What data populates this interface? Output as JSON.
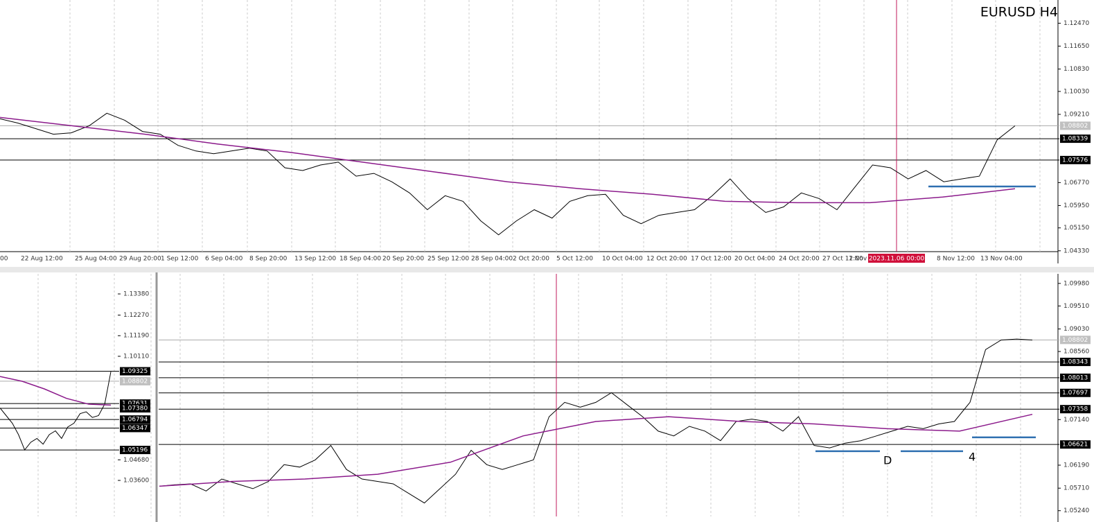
{
  "chart_data": [
    {
      "type": "line",
      "title": "EURUSD H4",
      "ylim": [
        1.043,
        1.133
      ],
      "yticks": [
        {
          "value": 1.1247,
          "label": "1.12470"
        },
        {
          "value": 1.1165,
          "label": "1.11650"
        },
        {
          "value": 1.1083,
          "label": "1.10830"
        },
        {
          "value": 1.1003,
          "label": "1.10030"
        },
        {
          "value": 1.0921,
          "label": "1.09210"
        },
        {
          "value": 1.0677,
          "label": "1.06770"
        },
        {
          "value": 1.0595,
          "label": "1.05950"
        },
        {
          "value": 1.0515,
          "label": "1.05150"
        },
        {
          "value": 1.0433,
          "label": "1.04330"
        }
      ],
      "current": {
        "value": 1.08802,
        "label": "1.08802"
      },
      "levels": [
        {
          "value": 1.08339,
          "label": "1.08339"
        },
        {
          "value": 1.07576,
          "label": "1.07576"
        }
      ],
      "supports": [
        1.0663
      ],
      "time_labels": [
        "00",
        "22 Aug 12:00",
        "25 Aug 04:00",
        "29 Aug 20:00",
        "1 Sep 12:00",
        "6 Sep 04:00",
        "8 Sep 20:00",
        "13 Sep 12:00",
        "18 Sep 04:00",
        "20 Sep 20:00",
        "25 Sep 12:00",
        "28 Sep 04:00",
        "2 Oct 20:00",
        "5 Oct 12:00",
        "10 Oct 04:00",
        "12 Oct 20:00",
        "17 Oct 12:00",
        "20 Oct 04:00",
        "24 Oct 20:00",
        "27 Oct 12:00",
        "1 Nov",
        "8 Nov 12:00",
        "13 Nov 04:00"
      ],
      "cursor_label": "2023.11.06 00:00",
      "series": [
        {
          "color": "#000000",
          "values": [
            1.0905,
            1.089,
            1.087,
            1.085,
            1.0855,
            1.088,
            1.0925,
            1.09,
            1.086,
            1.085,
            1.081,
            1.079,
            1.078,
            1.079,
            1.08,
            1.079,
            1.073,
            1.072,
            1.074,
            1.075,
            1.07,
            1.071,
            1.068,
            1.064,
            1.058,
            1.063,
            1.061,
            1.054,
            1.049,
            1.054,
            1.058,
            1.055,
            1.061,
            1.063,
            1.0635,
            1.056,
            1.053,
            1.056,
            1.057,
            1.058,
            1.063,
            1.069,
            1.062,
            1.057,
            1.059,
            1.064,
            1.062,
            1.058,
            1.066,
            1.074,
            1.073,
            1.069,
            1.072,
            1.068,
            1.069,
            1.07,
            1.083,
            1.088
          ]
        },
        {
          "color": "#8b1a8b",
          "values": [
            1.091,
            1.088,
            1.085,
            1.0815,
            1.0785,
            1.075,
            1.0715,
            1.068,
            1.0655,
            1.0635,
            1.061,
            1.0605,
            1.0605,
            1.0625,
            1.0655
          ]
        }
      ]
    },
    {
      "type": "line",
      "ylim": [
        1.01709,
        1.14435
      ],
      "yticks": [
        {
          "value": 1.1338,
          "label": "1.13380"
        },
        {
          "value": 1.1227,
          "label": "1.12270"
        },
        {
          "value": 1.1119,
          "label": "1.11190"
        },
        {
          "value": 1.1011,
          "label": "1.10110"
        },
        {
          "value": 1.0468,
          "label": "1.04680"
        },
        {
          "value": 1.036,
          "label": "1.03600"
        }
      ],
      "current": {
        "value": 1.08802,
        "label": "1.08802"
      },
      "levels": [
        {
          "value": 1.09325,
          "label": "1.09325"
        },
        {
          "value": 1.07631,
          "label": "1.07631"
        },
        {
          "value": 1.0738,
          "label": "1.07380"
        },
        {
          "value": 1.06794,
          "label": "1.06794"
        },
        {
          "value": 1.06347,
          "label": "1.06347"
        },
        {
          "value": 1.05196,
          "label": "1.05196"
        }
      ],
      "series": [
        {
          "color": "#000000",
          "values": [
            1.074,
            1.07,
            1.066,
            1.06,
            1.052,
            1.056,
            1.058,
            1.055,
            1.06,
            1.062,
            1.058,
            1.064,
            1.066,
            1.071,
            1.072,
            1.069,
            1.07,
            1.076,
            1.093
          ]
        },
        {
          "color": "#8b1a8b",
          "values": [
            1.0905,
            1.088,
            1.084,
            1.079,
            1.076,
            1.0755
          ]
        }
      ]
    },
    {
      "type": "line",
      "ylim": [
        1.0512,
        1.1018
      ],
      "yticks": [
        {
          "value": 1.0998,
          "label": "1.09980"
        },
        {
          "value": 1.0951,
          "label": "1.09510"
        },
        {
          "value": 1.0903,
          "label": "1.09030"
        },
        {
          "value": 1.0856,
          "label": "1.08560"
        },
        {
          "value": 1.0714,
          "label": "1.07140"
        },
        {
          "value": 1.0619,
          "label": "1.06190"
        },
        {
          "value": 1.0571,
          "label": "1.05710"
        },
        {
          "value": 1.0524,
          "label": "1.05240"
        }
      ],
      "current": {
        "value": 1.08802,
        "label": "1.08802"
      },
      "levels": [
        {
          "value": 1.08343,
          "label": "1.08343"
        },
        {
          "value": 1.08013,
          "label": "1.08013"
        },
        {
          "value": 1.07697,
          "label": "1.07697"
        },
        {
          "value": 1.07358,
          "label": "1.07358"
        },
        {
          "value": 1.06621,
          "label": "1.06621"
        }
      ],
      "supports": [
        1.0648,
        1.0648,
        1.0677
      ],
      "annotations": [
        "D",
        "4"
      ],
      "series": [
        {
          "color": "#000000",
          "values": [
            1.0575,
            1.0578,
            1.058,
            1.0565,
            1.059,
            1.058,
            1.057,
            1.0585,
            1.062,
            1.0615,
            1.063,
            1.066,
            1.061,
            1.059,
            1.0585,
            1.058,
            1.056,
            1.054,
            1.057,
            1.06,
            1.065,
            1.062,
            1.061,
            1.062,
            1.063,
            1.072,
            1.075,
            1.074,
            1.075,
            1.077,
            1.0745,
            1.072,
            1.069,
            1.068,
            1.07,
            1.069,
            1.067,
            1.071,
            1.0715,
            1.071,
            1.069,
            1.072,
            1.066,
            1.0655,
            1.0665,
            1.067,
            1.068,
            1.069,
            1.07,
            1.0695,
            1.0705,
            1.071,
            1.075,
            1.086,
            1.088,
            1.0882,
            1.088
          ]
        },
        {
          "color": "#8b1a8b",
          "values": [
            1.0575,
            1.0585,
            1.059,
            1.06,
            1.0625,
            1.068,
            1.071,
            1.072,
            1.071,
            1.0705,
            1.0695,
            1.069,
            1.0725
          ]
        }
      ]
    }
  ]
}
